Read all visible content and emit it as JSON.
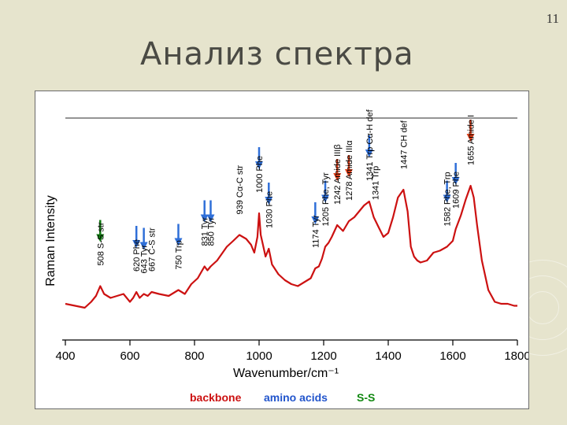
{
  "slide": {
    "title": "Анализ спектра",
    "number": "11"
  },
  "chart_data": {
    "type": "line",
    "title": "",
    "xlabel": "Wavenumber/cm⁻¹",
    "ylabel": "Raman Intensity",
    "xlim": [
      400,
      1800
    ],
    "xticks": [
      "400",
      "600",
      "800",
      "1000",
      "1200",
      "1400",
      "1600",
      "1800"
    ],
    "grid": false,
    "series": [
      {
        "color": "#cc1111",
        "x": [
          400,
          430,
          460,
          480,
          495,
          508,
          520,
          540,
          560,
          580,
          600,
          610,
          620,
          630,
          643,
          655,
          667,
          690,
          720,
          750,
          770,
          790,
          810,
          831,
          840,
          850,
          870,
          900,
          920,
          939,
          960,
          975,
          985,
          995,
          1000,
          1005,
          1012,
          1020,
          1030,
          1040,
          1060,
          1080,
          1100,
          1120,
          1140,
          1160,
          1174,
          1185,
          1195,
          1205,
          1215,
          1225,
          1242,
          1260,
          1278,
          1295,
          1310,
          1325,
          1341,
          1355,
          1370,
          1385,
          1400,
          1415,
          1430,
          1447,
          1460,
          1470,
          1480,
          1490,
          1500,
          1520,
          1540,
          1560,
          1582,
          1600,
          1609,
          1625,
          1640,
          1655,
          1665,
          1675,
          1690,
          1710,
          1730,
          1750,
          1770,
          1790,
          1800
        ],
        "y": [
          0.08,
          0.07,
          0.06,
          0.09,
          0.12,
          0.17,
          0.13,
          0.11,
          0.12,
          0.13,
          0.09,
          0.11,
          0.14,
          0.11,
          0.13,
          0.12,
          0.14,
          0.13,
          0.12,
          0.15,
          0.13,
          0.18,
          0.21,
          0.27,
          0.25,
          0.27,
          0.3,
          0.37,
          0.4,
          0.43,
          0.41,
          0.38,
          0.34,
          0.42,
          0.54,
          0.43,
          0.38,
          0.32,
          0.36,
          0.28,
          0.23,
          0.2,
          0.18,
          0.17,
          0.19,
          0.21,
          0.26,
          0.27,
          0.31,
          0.37,
          0.39,
          0.42,
          0.48,
          0.45,
          0.5,
          0.52,
          0.55,
          0.58,
          0.6,
          0.52,
          0.47,
          0.42,
          0.44,
          0.52,
          0.62,
          0.66,
          0.55,
          0.37,
          0.32,
          0.3,
          0.29,
          0.3,
          0.34,
          0.35,
          0.37,
          0.4,
          0.46,
          0.53,
          0.61,
          0.68,
          0.62,
          0.48,
          0.3,
          0.15,
          0.09,
          0.08,
          0.08,
          0.07,
          0.07
        ]
      }
    ],
    "annotations": [
      {
        "text": "508 S-S str",
        "x": 508,
        "arrow": "green"
      },
      {
        "text": "620 Phe",
        "x": 620,
        "arrow": "blue"
      },
      {
        "text": "643 Tyr",
        "x": 643,
        "arrow": "blue"
      },
      {
        "text": "667 C-S str",
        "x": 667,
        "arrow": ""
      },
      {
        "text": "750 Trp",
        "x": 750,
        "arrow": "blue"
      },
      {
        "text": "831 Tyr",
        "x": 831,
        "arrow": "blue"
      },
      {
        "text": "850 Tyr",
        "x": 850,
        "arrow": "blue"
      },
      {
        "text": "939 Cα-C str",
        "x": 939,
        "arrow": ""
      },
      {
        "text": "1000 Phe",
        "x": 1000,
        "arrow": "blue"
      },
      {
        "text": "1030 Phe",
        "x": 1030,
        "arrow": "blue"
      },
      {
        "text": "1174 Tyr",
        "x": 1174,
        "arrow": "blue"
      },
      {
        "text": "1205 Phe, Tyr",
        "x": 1205,
        "arrow": "blue"
      },
      {
        "text": "1242 Amide IIIβ",
        "x": 1242,
        "arrow": "red"
      },
      {
        "text": "1278 Amide IIIα",
        "x": 1278,
        "arrow": "red"
      },
      {
        "text": "1341 Trp Cα-H def",
        "x": 1341,
        "arrow": "blue"
      },
      {
        "text": "1341 Trp",
        "x": 1360,
        "arrow": ""
      },
      {
        "text": "1447 CH def",
        "x": 1447,
        "arrow": ""
      },
      {
        "text": "1582 Phe, Trp",
        "x": 1582,
        "arrow": "blue"
      },
      {
        "text": "1609 Phe",
        "x": 1609,
        "arrow": "blue"
      },
      {
        "text": "1655 Amide I",
        "x": 1655,
        "arrow": "red"
      }
    ],
    "legend": {
      "placement": "bottom",
      "items": [
        {
          "label": "backbone",
          "color": "#cc1111"
        },
        {
          "label": "amino acids",
          "color": "#2255cc"
        },
        {
          "label": "S-S",
          "color": "#118811"
        }
      ]
    },
    "arrow_colors": {
      "green": "#117a11",
      "blue": "#2f6fd8",
      "red": "#e0401a"
    }
  }
}
